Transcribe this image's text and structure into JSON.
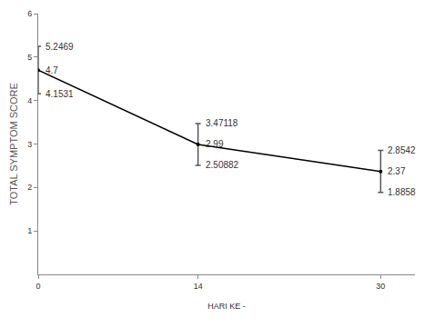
{
  "chart_data": {
    "type": "line",
    "x_label": "HARI KE -",
    "y_label": "TOTAL SYMPTOM SCORE",
    "x": [
      0,
      14,
      30
    ],
    "values": [
      4.7,
      2.99,
      2.37
    ],
    "error_upper": [
      5.2469,
      3.47118,
      2.8542
    ],
    "error_lower": [
      4.1531,
      2.50882,
      1.8858
    ],
    "xlim": [
      0,
      33
    ],
    "xticks": [
      0,
      14,
      30
    ],
    "ylim": [
      0,
      6
    ],
    "yticks": [
      1,
      2,
      3,
      4,
      5,
      6
    ],
    "grid": false,
    "data_labels": true,
    "color": "#000000",
    "marker": "circle"
  }
}
